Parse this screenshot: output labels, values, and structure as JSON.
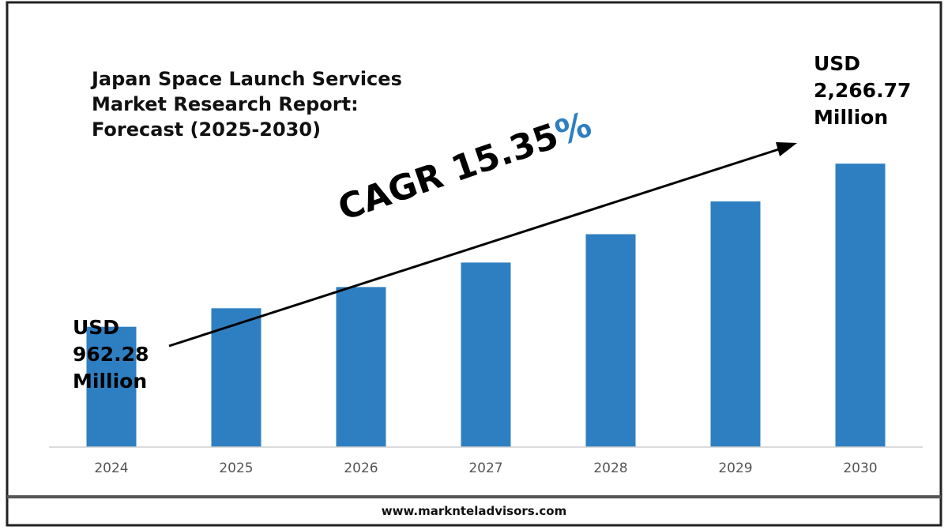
{
  "title_lines": [
    "Japan Space Launch Services",
    "Market Research Report:",
    "Forecast (2025-2030)"
  ],
  "start_label": [
    "USD",
    "962.28",
    "Million"
  ],
  "end_label": [
    "USD",
    "2,266.77",
    "Million"
  ],
  "cagr": {
    "text": "CAGR 15.35",
    "percent_sign": "%"
  },
  "footer": {
    "website": "www.marknteladvisors.com"
  },
  "colors": {
    "bar": "#2e7fc2",
    "accent_percent": "#2e7fc2",
    "text": "#111111"
  },
  "chart_data": {
    "type": "bar",
    "categories": [
      "2024",
      "2025",
      "2026",
      "2027",
      "2028",
      "2029",
      "2030"
    ],
    "values": [
      962.28,
      1110,
      1280,
      1476,
      1703,
      1965,
      2266.77
    ],
    "ylim": [
      0,
      2900
    ],
    "grid": false,
    "title": "Japan Space Launch Services Market Research Report: Forecast (2025-2030)",
    "annotations": [
      "USD 962.28 Million",
      "USD 2,266.77 Million",
      "CAGR 15.35%"
    ]
  }
}
